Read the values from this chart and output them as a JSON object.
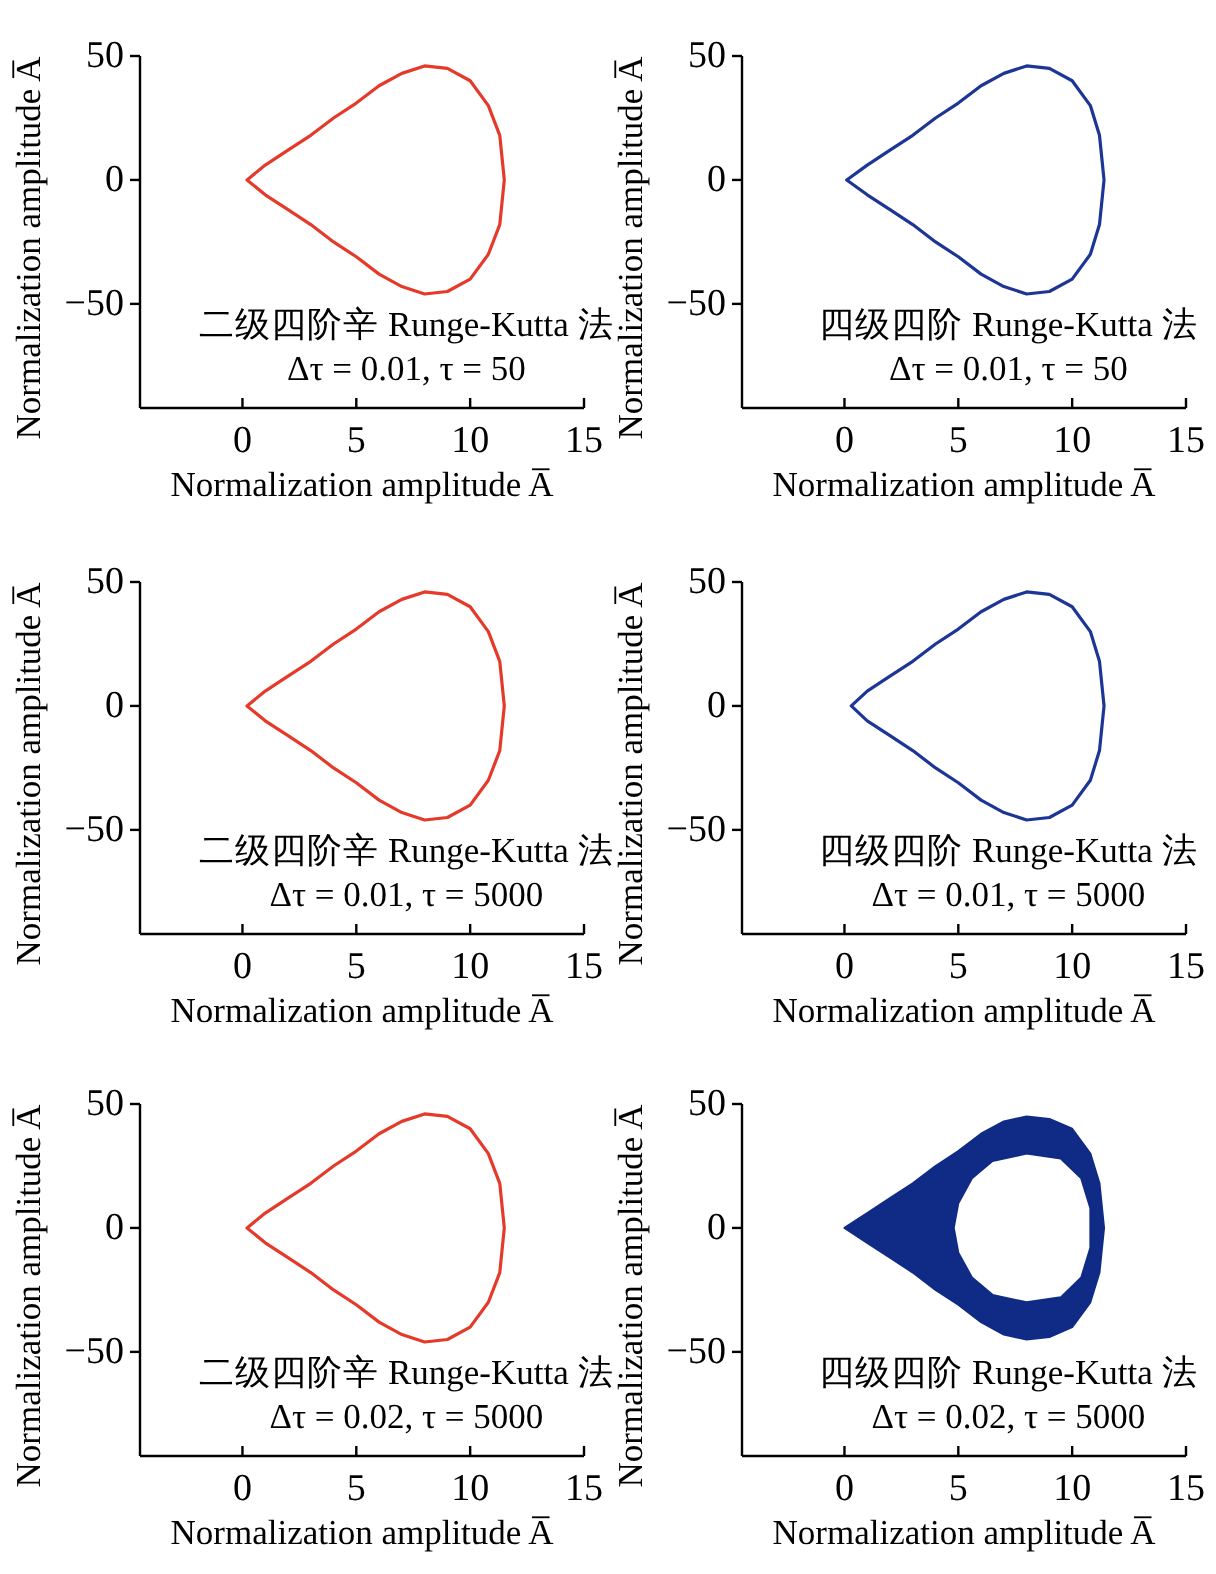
{
  "chart_data": [
    {
      "type": "line",
      "xlabel": "Normalization amplitude A̅",
      "ylabel": "Normalization amplitude A̅",
      "xlim": [
        -4.5,
        15
      ],
      "ylim": [
        -92,
        50
      ],
      "xticks": [
        0,
        5,
        10,
        15
      ],
      "yticks": [
        -50,
        0,
        50
      ],
      "annotations": [
        "二级四阶辛 Runge-Kutta 法",
        "Δτ = 0.01, τ = 50"
      ],
      "series": [
        {
          "color": "#e53a2a",
          "x": [
            0.2,
            1,
            2,
            3,
            4,
            5,
            6,
            7,
            8,
            9,
            10,
            10.8,
            11.3,
            11.5,
            null,
            0.2,
            1,
            2,
            3,
            4,
            5,
            6,
            7,
            8,
            9,
            10,
            10.8,
            11.3,
            11.5
          ],
          "values": [
            0,
            6,
            12,
            18,
            25,
            31,
            38,
            43,
            46,
            45,
            40,
            30,
            18,
            0,
            null,
            0,
            -6,
            -12,
            -18,
            -25,
            -31,
            -38,
            -43,
            -46,
            -45,
            -40,
            -30,
            -18,
            0
          ]
        }
      ]
    },
    {
      "type": "line",
      "xlabel": "Normalization amplitude A̅",
      "ylabel": "Normalization amplitude A̅",
      "xlim": [
        -4.5,
        15
      ],
      "ylim": [
        -92,
        50
      ],
      "xticks": [
        0,
        5,
        10,
        15
      ],
      "yticks": [
        -50,
        0,
        50
      ],
      "annotations": [
        "四级四阶 Runge-Kutta 法",
        "Δτ = 0.01, τ = 50"
      ],
      "series": [
        {
          "color": "#1d3595",
          "x": [
            0.1,
            1,
            2,
            3,
            4,
            5,
            6,
            7,
            8,
            9,
            10,
            10.8,
            11.2,
            11.4,
            null,
            0.1,
            1,
            2,
            3,
            4,
            5,
            6,
            7,
            8,
            9,
            10,
            10.8,
            11.2,
            11.4
          ],
          "values": [
            0,
            6,
            12,
            18,
            25,
            31,
            38,
            43,
            46,
            45,
            40,
            30,
            18,
            0,
            null,
            0,
            -6,
            -12,
            -18,
            -25,
            -31,
            -38,
            -43,
            -46,
            -45,
            -40,
            -30,
            -18,
            0
          ]
        }
      ]
    },
    {
      "type": "line",
      "xlabel": "Normalization amplitude A̅",
      "ylabel": "Normalization amplitude A̅",
      "xlim": [
        -4.5,
        15
      ],
      "ylim": [
        -92,
        50
      ],
      "xticks": [
        0,
        5,
        10,
        15
      ],
      "yticks": [
        -50,
        0,
        50
      ],
      "annotations": [
        "二级四阶辛 Runge-Kutta 法",
        "Δτ = 0.01, τ = 5000"
      ],
      "series": [
        {
          "color": "#e53a2a",
          "x": [
            0.2,
            1,
            2,
            3,
            4,
            5,
            6,
            7,
            8,
            9,
            10,
            10.8,
            11.3,
            11.5,
            null,
            0.2,
            1,
            2,
            3,
            4,
            5,
            6,
            7,
            8,
            9,
            10,
            10.8,
            11.3,
            11.5
          ],
          "values": [
            0,
            6,
            12,
            18,
            25,
            31,
            38,
            43,
            46,
            45,
            40,
            30,
            18,
            0,
            null,
            0,
            -6,
            -12,
            -18,
            -25,
            -31,
            -38,
            -43,
            -46,
            -45,
            -40,
            -30,
            -18,
            0
          ]
        }
      ]
    },
    {
      "type": "line",
      "xlabel": "Normalization amplitude A̅",
      "ylabel": "Normalization amplitude A̅",
      "xlim": [
        -4.5,
        15
      ],
      "ylim": [
        -92,
        50
      ],
      "xticks": [
        0,
        5,
        10,
        15
      ],
      "yticks": [
        -50,
        0,
        50
      ],
      "annotations": [
        "四级四阶 Runge-Kutta 法",
        "Δτ = 0.01, τ = 5000"
      ],
      "series": [
        {
          "color": "#1d3595",
          "x": [
            0.3,
            1,
            2,
            3,
            4,
            5,
            6,
            7,
            8,
            9,
            10,
            10.8,
            11.2,
            11.4,
            null,
            0.3,
            1,
            2,
            3,
            4,
            5,
            6,
            7,
            8,
            9,
            10,
            10.8,
            11.2,
            11.4
          ],
          "values": [
            0,
            6,
            12,
            18,
            25,
            31,
            38,
            43,
            46,
            45,
            40,
            30,
            18,
            0,
            null,
            0,
            -6,
            -12,
            -18,
            -25,
            -31,
            -38,
            -43,
            -46,
            -45,
            -40,
            -30,
            -18,
            0
          ]
        }
      ]
    },
    {
      "type": "line",
      "xlabel": "Normalization amplitude A̅",
      "ylabel": "Normalization amplitude A̅",
      "xlim": [
        -4.5,
        15
      ],
      "ylim": [
        -92,
        50
      ],
      "xticks": [
        0,
        5,
        10,
        15
      ],
      "yticks": [
        -50,
        0,
        50
      ],
      "annotations": [
        "二级四阶辛 Runge-Kutta 法",
        "Δτ = 0.02, τ = 5000"
      ],
      "series": [
        {
          "color": "#e53a2a",
          "x": [
            0.2,
            1,
            2,
            3,
            4,
            5,
            6,
            7,
            8,
            9,
            10,
            10.8,
            11.3,
            11.5,
            null,
            0.2,
            1,
            2,
            3,
            4,
            5,
            6,
            7,
            8,
            9,
            10,
            10.8,
            11.3,
            11.5
          ],
          "values": [
            0,
            6,
            12,
            18,
            25,
            31,
            38,
            43,
            46,
            45,
            40,
            30,
            18,
            0,
            null,
            0,
            -6,
            -12,
            -18,
            -25,
            -31,
            -38,
            -43,
            -46,
            -45,
            -40,
            -30,
            -18,
            0
          ]
        }
      ]
    },
    {
      "type": "area",
      "xlabel": "Normalization amplitude A̅",
      "ylabel": "Normalization amplitude A̅",
      "xlim": [
        -4.5,
        15
      ],
      "ylim": [
        -92,
        50
      ],
      "xticks": [
        0,
        5,
        10,
        15
      ],
      "yticks": [
        -50,
        0,
        50
      ],
      "annotations": [
        "四级四阶 Runge-Kutta 法",
        "Δτ = 0.02, τ = 5000"
      ],
      "series": [
        {
          "color": "#0f2b85",
          "x": [
            0,
            1,
            2,
            3,
            4,
            5,
            6,
            7,
            8,
            9,
            10,
            10.8,
            11.2,
            11.4,
            11.2,
            10.8,
            10,
            9,
            8,
            7,
            6,
            5,
            4,
            3,
            2,
            1,
            0,
            null,
            4.8,
            5,
            5.6,
            6.5,
            8,
            9.5,
            10.4,
            10.8,
            10.8,
            10.8,
            10.4,
            9.5,
            8,
            6.5,
            5.6,
            5,
            4.8
          ],
          "values": [
            0,
            6,
            12,
            18,
            25,
            31,
            38,
            43,
            45,
            44,
            40,
            30,
            18,
            0,
            -18,
            -30,
            -40,
            -44,
            -45,
            -43,
            -38,
            -31,
            -25,
            -18,
            -12,
            -6,
            0,
            null,
            0,
            10,
            20,
            27,
            30,
            28,
            20,
            8,
            0,
            -8,
            -20,
            -28,
            -30,
            -27,
            -20,
            -10,
            0
          ]
        }
      ]
    }
  ]
}
